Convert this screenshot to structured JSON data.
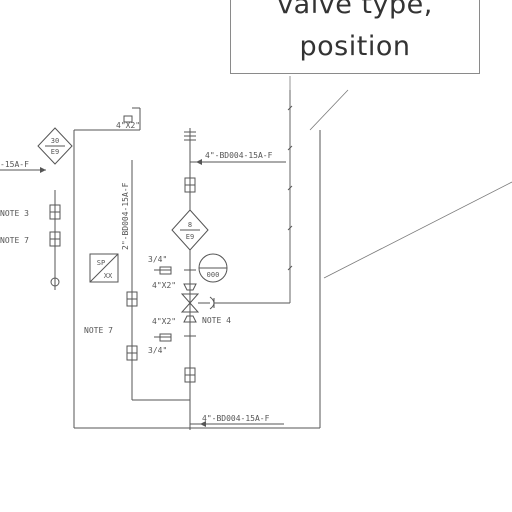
{
  "callout": {
    "line1": "valve type,",
    "line2": "position"
  },
  "labels": {
    "line_top": "4\"-BD004-15A-F",
    "line_bottom": "4\"-BD004-15A-F",
    "line_left": "-15A-F",
    "line_vertical": "2\"-BD004-15A-F",
    "size_top": "4\"X2\"",
    "size_bottom": "4\"X2\"",
    "frac_top": "3/4\"",
    "frac_bottom": "3/4\"",
    "note3": "NOTE 3",
    "note7_left": "NOTE 7",
    "note7_mid": "NOTE 7",
    "note4": "NOTE 4",
    "dia_left_num": "30",
    "dia_left_sub": "E9",
    "dia_mid_num": "8",
    "dia_mid_sub": "E9",
    "instrument": "000",
    "box_label": "SP",
    "box_sub": "XX",
    "misc": "4\"X2\""
  },
  "colors": {
    "ink": "#555555",
    "light_ink": "#7a7a7a",
    "callout_border": "#8a8a8a",
    "callout_text": "#333333"
  }
}
